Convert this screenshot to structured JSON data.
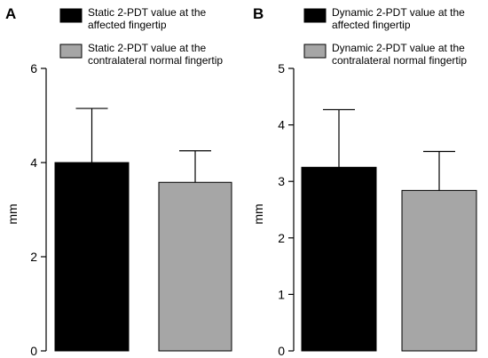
{
  "chart_data": [
    {
      "type": "bar",
      "panel_label": "A",
      "ylabel": "mm",
      "ylim": [
        0,
        6
      ],
      "yticks": [
        "0",
        "2",
        "4",
        "6"
      ],
      "legend": [
        {
          "line1": "Static 2-PDT value at the",
          "line2": "affected fingertip",
          "color": "#000000"
        },
        {
          "line1": "Static 2-PDT value at the",
          "line2": "contralateral normal fingertip",
          "color": "#a6a6a6"
        }
      ],
      "series": [
        {
          "name": "Static 2-PDT value at the affected fingertip",
          "value": 4.0,
          "error": 1.15,
          "color": "#000000"
        },
        {
          "name": "Static 2-PDT value at the contralateral normal fingertip",
          "value": 3.58,
          "error": 0.67,
          "color": "#a6a6a6"
        }
      ]
    },
    {
      "type": "bar",
      "panel_label": "B",
      "ylabel": "mm",
      "ylim": [
        0,
        5
      ],
      "yticks": [
        "0",
        "1",
        "2",
        "3",
        "4",
        "5"
      ],
      "legend": [
        {
          "line1": "Dynamic 2-PDT value at the",
          "line2": "affected fingertip",
          "color": "#000000"
        },
        {
          "line1": "Dynamic 2-PDT value at the",
          "line2": "contralateral normal fingertip",
          "color": "#a6a6a6"
        }
      ],
      "series": [
        {
          "name": "Dynamic 2-PDT value at the affected fingertip",
          "value": 3.25,
          "error": 1.02,
          "color": "#000000"
        },
        {
          "name": "Dynamic 2-PDT value at the contralateral normal fingertip",
          "value": 2.84,
          "error": 0.69,
          "color": "#a6a6a6"
        }
      ]
    }
  ]
}
